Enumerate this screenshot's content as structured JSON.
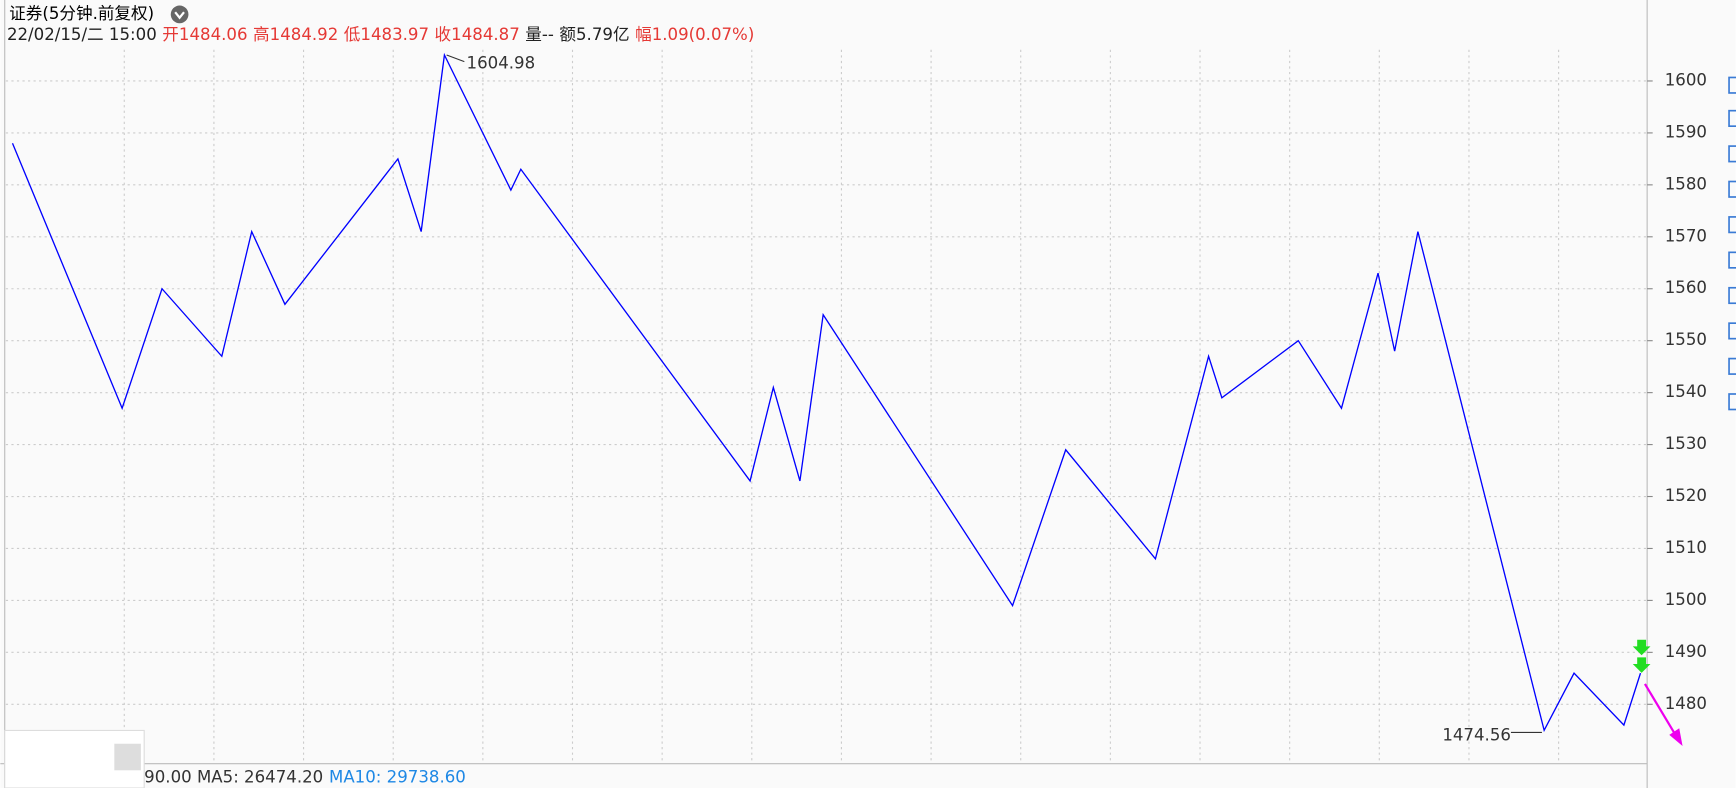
{
  "chart_data": {
    "type": "line",
    "title": "证券(5分钟.前复权)",
    "info": [
      "22/02/15/二 15:00",
      "开1484.06",
      "高1484.92",
      "低1483.97",
      "收1484.87",
      "量--",
      "额5.79亿",
      "幅1.09(0.07%)"
    ],
    "high_label": "1604.98",
    "low_label": "1474.56",
    "footer": [
      "90.00 MA5: 26474.20",
      "MA10: 29738.60"
    ],
    "x": [
      2,
      35,
      47,
      65,
      74,
      84,
      118,
      125,
      132,
      152,
      155,
      224,
      231,
      239,
      246,
      303,
      319,
      346,
      362,
      366,
      389,
      402,
      413,
      418,
      425,
      463,
      472,
      487,
      492
    ],
    "series": [
      {
        "color": "#0000ff",
        "values": [
          1588,
          1537,
          1560,
          1547,
          1571,
          1557,
          1585,
          1571,
          1605,
          1579,
          1583,
          1523,
          1541,
          1523,
          1555,
          1499,
          1529,
          1508,
          1547,
          1539,
          1550,
          1537,
          1563,
          1548,
          1571,
          1475,
          1486,
          1476,
          1486
        ]
      }
    ],
    "xlim": [
      0,
      494
    ],
    "ylim": [
      1469,
      1606
    ],
    "yticks": [
      1480,
      1490,
      1500,
      1510,
      1520,
      1530,
      1540,
      1550,
      1560,
      1570,
      1580,
      1590,
      1600
    ],
    "grid": true
  }
}
